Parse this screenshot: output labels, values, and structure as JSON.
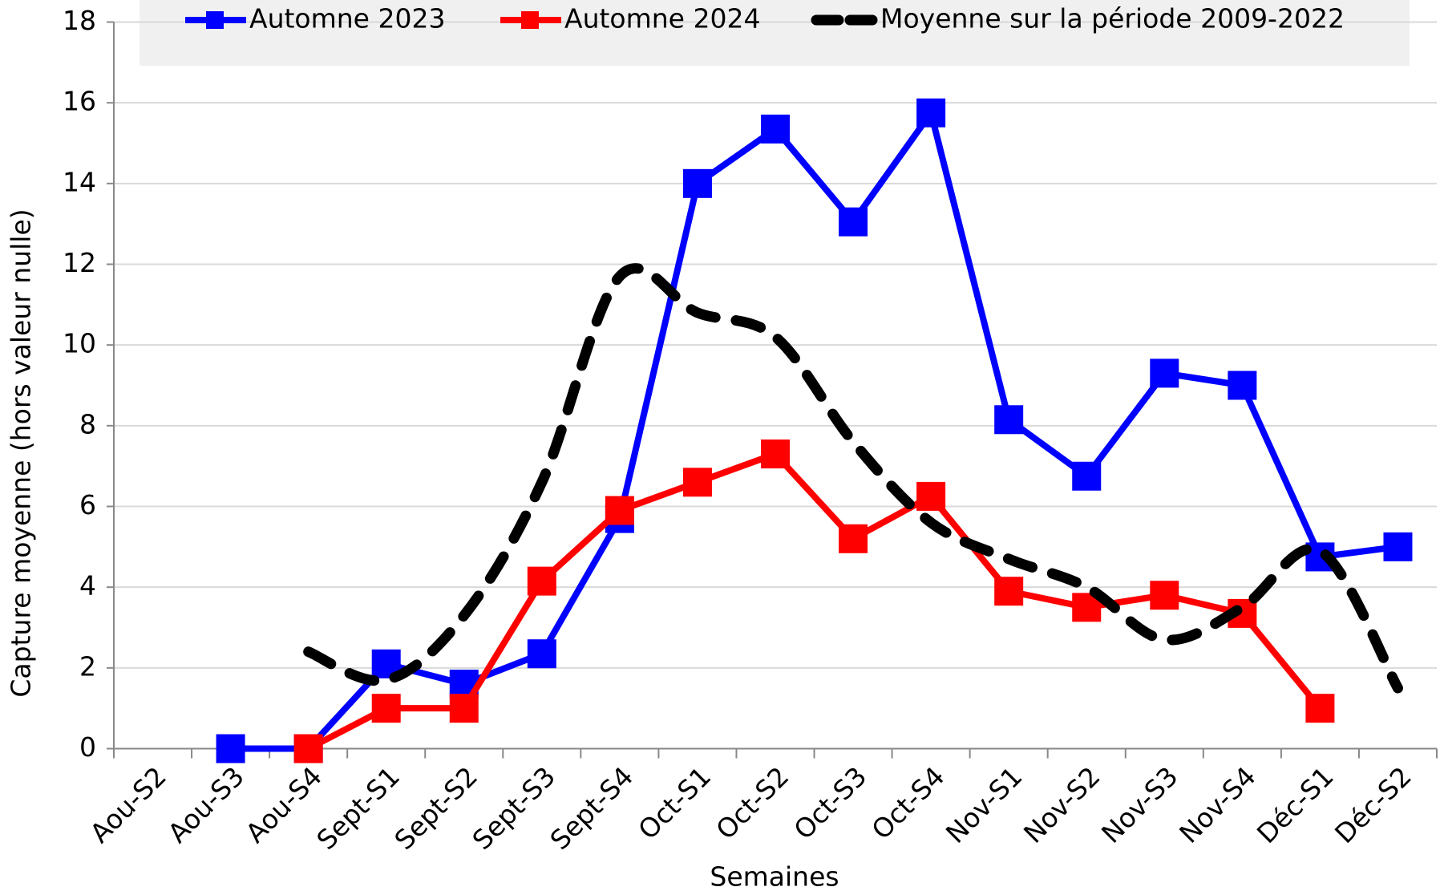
{
  "chart_data": {
    "type": "line",
    "x_label": "Semaines",
    "y_label": "Capture moyenne (hors valeur nulle)",
    "categories": [
      "Aou-S2",
      "Aou-S3",
      "Aou-S4",
      "Sept-S1",
      "Sept-S2",
      "Sept-S3",
      "Sept-S4",
      "Oct-S1",
      "Oct-S2",
      "Oct-S3",
      "Oct-S4",
      "Nov-S1",
      "Nov-S2",
      "Nov-S3",
      "Nov-S4",
      "Déc-S1",
      "Déc-S2"
    ],
    "series": [
      {
        "name": "Automne 2023",
        "color": "#0000ff",
        "marker": "square",
        "dashed": false,
        "values": [
          null,
          0,
          0,
          2.1,
          1.6,
          2.35,
          5.7,
          14,
          15.35,
          13.05,
          15.75,
          8.15,
          6.75,
          9.3,
          9,
          4.75,
          5
        ]
      },
      {
        "name": "Automne 2024",
        "color": "#ff0000",
        "marker": "square",
        "dashed": false,
        "values": [
          null,
          null,
          0,
          1,
          1,
          4.15,
          5.9,
          6.6,
          7.3,
          5.2,
          6.25,
          3.9,
          3.5,
          3.8,
          3.35,
          1,
          null
        ]
      },
      {
        "name": "Moyenne sur la période 2009-2022",
        "color": "#000000",
        "marker": "none",
        "dashed": true,
        "smooth": true,
        "values": [
          null,
          null,
          2.4,
          1.7,
          3.3,
          6.6,
          11.7,
          10.8,
          10.2,
          7.6,
          5.6,
          4.7,
          4,
          2.7,
          3.5,
          4.9,
          1.5
        ]
      }
    ],
    "ylim": [
      0,
      18
    ],
    "yticks": [
      0,
      2,
      4,
      6,
      8,
      10,
      12,
      14,
      16,
      18
    ],
    "grid": true,
    "legend": "top"
  }
}
